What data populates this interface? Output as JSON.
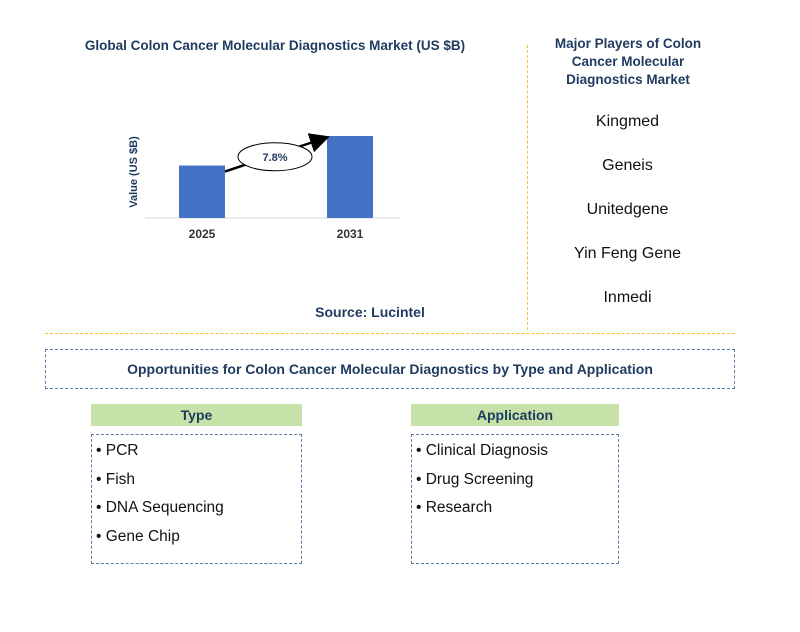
{
  "chart_data": {
    "type": "bar",
    "title": "Global Colon Cancer Molecular Diagnostics Market (US $B)",
    "ylabel": "Value (US $B)",
    "xlabel": "",
    "categories": [
      "2025",
      "2031"
    ],
    "values": [
      0.64,
      1.0
    ],
    "annotation": "7.8%",
    "grid": false,
    "color": "#4472c4"
  },
  "source": "Source: Lucintel",
  "players": {
    "title": "Major Players of Colon Cancer Molecular Diagnostics Market",
    "items": [
      "Kingmed",
      "Geneis",
      "Unitedgene",
      "Yin Feng Gene",
      "Inmedi"
    ]
  },
  "opportunities": {
    "title": "Opportunities for Colon Cancer Molecular Diagnostics by Type and Application",
    "type": {
      "header": "Type",
      "items": [
        "• PCR",
        "• Fish",
        "• DNA Sequencing",
        "• Gene Chip"
      ]
    },
    "application": {
      "header": "Application",
      "items": [
        "• Clinical Diagnosis",
        "• Drug Screening",
        "• Research"
      ]
    }
  }
}
